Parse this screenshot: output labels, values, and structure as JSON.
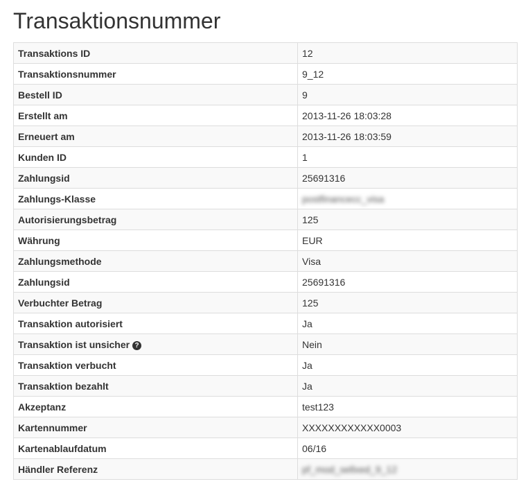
{
  "title": "Transaktionsnummer",
  "rows": [
    {
      "label": "Transaktions ID",
      "value": "12"
    },
    {
      "label": "Transaktionsnummer",
      "value": "9_12"
    },
    {
      "label": "Bestell ID",
      "value": "9"
    },
    {
      "label": "Erstellt am",
      "value": "2013-11-26 18:03:28"
    },
    {
      "label": "Erneuert am",
      "value": "2013-11-26 18:03:59"
    },
    {
      "label": "Kunden ID",
      "value": "1"
    },
    {
      "label": "Zahlungsid",
      "value": "25691316"
    },
    {
      "label": "Zahlungs-Klasse",
      "value": "postfinancecc_visa",
      "blurred": true
    },
    {
      "label": "Autorisierungsbetrag",
      "value": "125"
    },
    {
      "label": "Währung",
      "value": "EUR"
    },
    {
      "label": "Zahlungsmethode",
      "value": "Visa"
    },
    {
      "label": "Zahlungsid",
      "value": "25691316"
    },
    {
      "label": "Verbuchter Betrag",
      "value": "125"
    },
    {
      "label": "Transaktion autorisiert",
      "value": "Ja"
    },
    {
      "label": "Transaktion ist unsicher",
      "value": "Nein",
      "icon": "question-circle-icon"
    },
    {
      "label": "Transaktion verbucht",
      "value": "Ja"
    },
    {
      "label": "Transaktion bezahlt",
      "value": "Ja"
    },
    {
      "label": "Akzeptanz",
      "value": "test123"
    },
    {
      "label": "Kartennummer",
      "value": "XXXXXXXXXXXX0003"
    },
    {
      "label": "Kartenablaufdatum",
      "value": "06/16"
    },
    {
      "label": "Händler Referenz",
      "value": "pf_mod_sellxed_9_12",
      "blurred": true
    }
  ]
}
